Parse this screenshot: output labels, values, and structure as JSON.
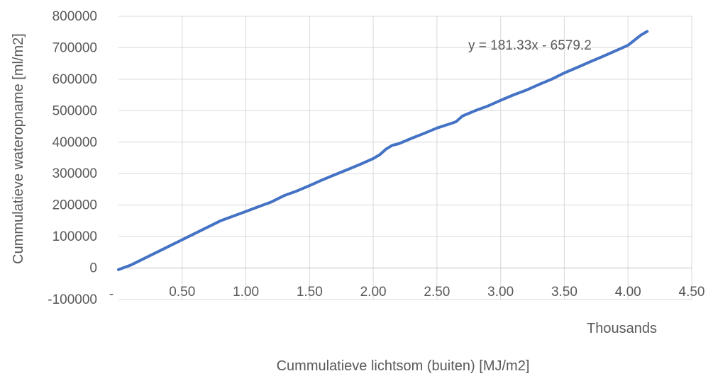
{
  "chart_data": {
    "type": "scatter",
    "title": "",
    "xlabel": "Cummulatieve lichtsom (buiten) [MJ/m2]",
    "ylabel": "Cummulatieve wateropname [ml/m2]",
    "x_display_unit": "Thousands",
    "xlim": [
      0,
      4.5
    ],
    "ylim": [
      -100000,
      800000
    ],
    "x_ticks": [
      "0.50",
      "1.00",
      "1.50",
      "2.00",
      "2.50",
      "3.00",
      "3.50",
      "4.00",
      "4.50"
    ],
    "x_tick_values": [
      0.5,
      1.0,
      1.5,
      2.0,
      2.5,
      3.0,
      3.5,
      4.0,
      4.5
    ],
    "y_ticks": [
      "800000",
      "700000",
      "600000",
      "500000",
      "400000",
      "300000",
      "200000",
      "100000",
      "0",
      "-100000"
    ],
    "y_tick_values": [
      800000,
      700000,
      600000,
      500000,
      400000,
      300000,
      200000,
      100000,
      0,
      -100000
    ],
    "grid": true,
    "legend": "none",
    "color": "#4472c4",
    "trendline": {
      "equation": "y = 181.33x - 6579.2",
      "slope": 181.33,
      "intercept": -6579.2
    },
    "series": [
      {
        "x": [
          0.0,
          0.1,
          0.2,
          0.3,
          0.4,
          0.5,
          0.6,
          0.7,
          0.8,
          0.9,
          1.0,
          1.1,
          1.2,
          1.3,
          1.4,
          1.5,
          1.6,
          1.7,
          1.8,
          1.9,
          2.0,
          2.05,
          2.1,
          2.15,
          2.2,
          2.3,
          2.4,
          2.5,
          2.6,
          2.65,
          2.7,
          2.8,
          2.9,
          3.0,
          3.1,
          3.2,
          3.3,
          3.4,
          3.5,
          3.6,
          3.7,
          3.8,
          3.9,
          4.0,
          4.1,
          4.15
        ],
        "y": [
          -5000,
          10000,
          30000,
          50000,
          70000,
          90000,
          110000,
          130000,
          150000,
          165000,
          180000,
          195000,
          210000,
          230000,
          245000,
          262000,
          280000,
          297000,
          313000,
          330000,
          348000,
          360000,
          378000,
          390000,
          395000,
          412000,
          428000,
          445000,
          458000,
          465000,
          483000,
          500000,
          515000,
          533000,
          550000,
          565000,
          583000,
          600000,
          620000,
          637000,
          655000,
          672000,
          690000,
          708000,
          740000,
          752000
        ]
      }
    ]
  }
}
